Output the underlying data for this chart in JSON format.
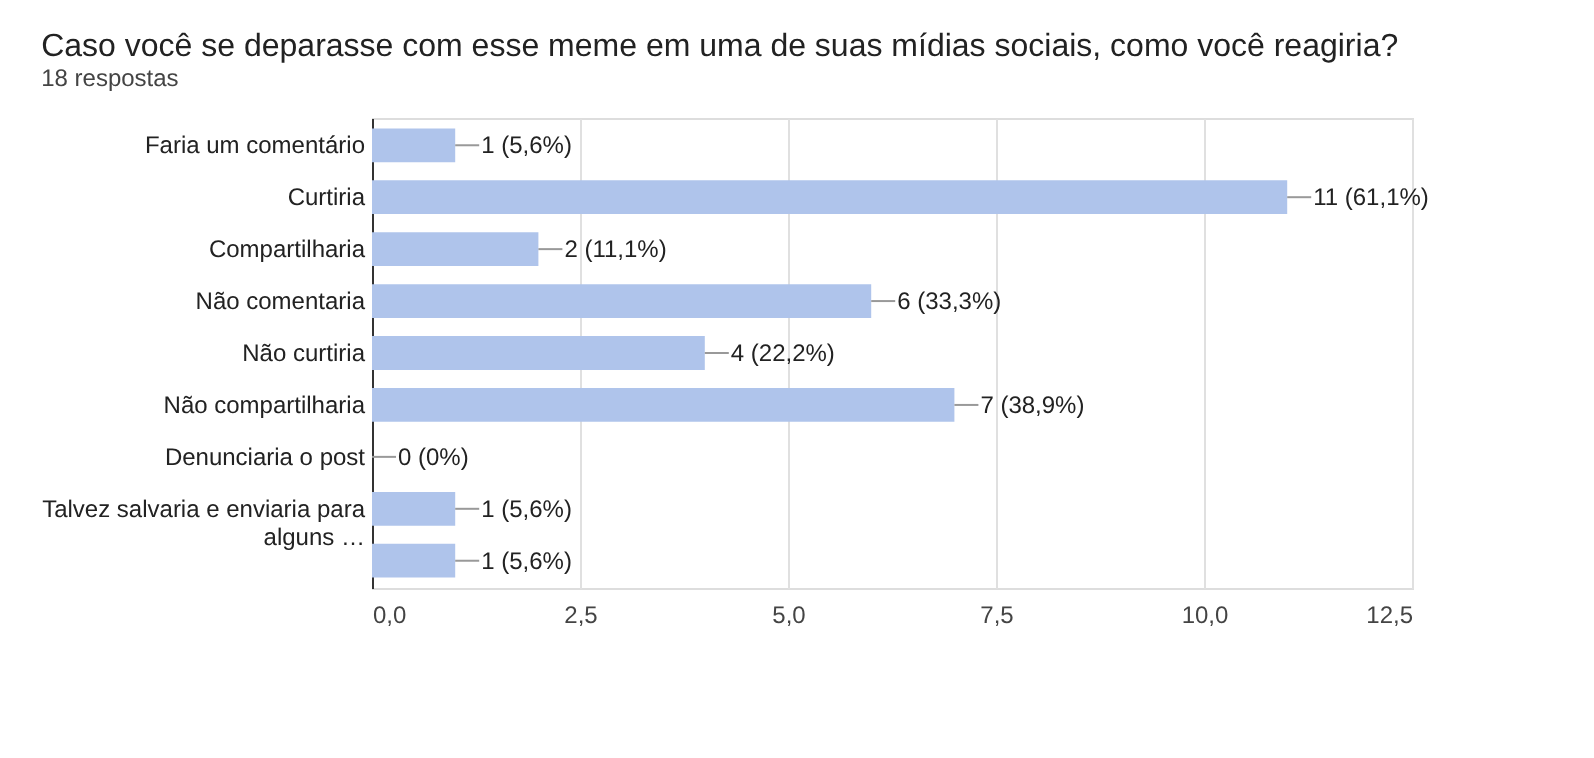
{
  "chart_data": {
    "type": "bar",
    "orientation": "horizontal",
    "title": "Caso você se deparasse com esse meme em uma de suas mídias sociais, como você reagiria?",
    "subtitle": "18 respostas",
    "categories": [
      "Faria um comentário",
      "Curtiria",
      "Compartilharia",
      "Não comentaria",
      "Não curtiria",
      "Não compartilharia",
      "Denunciaria o post",
      "Talvez salvaria e enviaria para alguns …",
      null
    ],
    "values": [
      1,
      11,
      2,
      6,
      4,
      7,
      0,
      1,
      1
    ],
    "value_labels": [
      "1 (5,6%)",
      "11 (61,1%)",
      "2 (11,1%)",
      "6 (33,3%)",
      "4 (22,2%)",
      "7 (38,9%)",
      "0 (0%)",
      "1 (5,6%)",
      "1 (5,6%)"
    ],
    "color": "#afc4eb",
    "xlim": [
      0,
      12.5
    ],
    "xticks": [
      {
        "value": 0,
        "label": "0,0"
      },
      {
        "value": 2.5,
        "label": "2,5"
      },
      {
        "value": 5,
        "label": "5,0"
      },
      {
        "value": 7.5,
        "label": "7,5"
      },
      {
        "value": 10,
        "label": "10,0"
      },
      {
        "value": 12.5,
        "label": "12,5"
      }
    ],
    "grid": "x",
    "legend": false
  }
}
